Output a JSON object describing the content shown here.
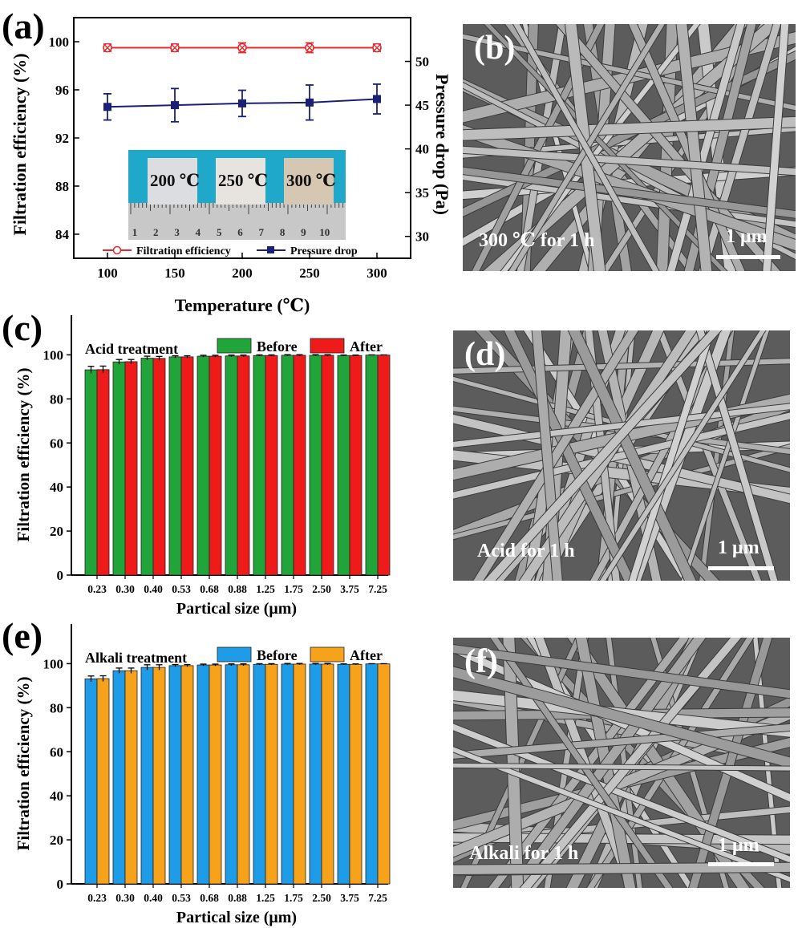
{
  "panel_labels": {
    "a": "(a)",
    "c": "(c)",
    "e": "(e)"
  },
  "chart_data": [
    {
      "id": "a",
      "type": "line",
      "xlabel": "Temperature (℃)",
      "ylabel": "Filtration efficiency (%)",
      "y2label": "Pressure drop (Pa)",
      "x": [
        100,
        150,
        200,
        250,
        300
      ],
      "xticks": [
        "100",
        "150",
        "200",
        "250",
        "300"
      ],
      "ylim": [
        82,
        102
      ],
      "yticks": [
        "84",
        "88",
        "92",
        "96",
        "100"
      ],
      "y2lim": [
        27.5,
        55
      ],
      "y2ticks": [
        "30",
        "35",
        "40",
        "45",
        "50"
      ],
      "series": [
        {
          "name": "Filtration efficiency",
          "axis": "left",
          "color": "#e8282e",
          "marker": "circle-x",
          "values": [
            99.5,
            99.5,
            99.5,
            99.5,
            99.5
          ],
          "errors": [
            0.3,
            0.3,
            0.4,
            0.4,
            0.3
          ]
        },
        {
          "name": "Pressure drop",
          "axis": "right",
          "color": "#1a1f78",
          "marker": "square",
          "values": [
            44.8,
            45.0,
            45.2,
            45.3,
            45.7
          ],
          "errors": [
            1.5,
            1.9,
            1.5,
            2.0,
            1.7
          ]
        }
      ],
      "inset": {
        "labels": [
          "200 ℃",
          "250 ℃",
          "300 ℃"
        ],
        "ruler_numbers": [
          "1",
          "2",
          "3",
          "4",
          "5",
          "6",
          "7",
          "8",
          "9",
          "10"
        ]
      }
    },
    {
      "id": "c",
      "type": "bar",
      "annotation": "Acid treatment",
      "xlabel": "Partical size (μm)",
      "ylabel": "Filtration efficiency (%)",
      "categories": [
        "0.23",
        "0.30",
        "0.40",
        "0.53",
        "0.68",
        "0.88",
        "1.25",
        "1.75",
        "2.50",
        "3.75",
        "7.25"
      ],
      "ylim": [
        0,
        118
      ],
      "yticks": [
        "0",
        "20",
        "40",
        "60",
        "80",
        "100"
      ],
      "series": [
        {
          "name": "Before",
          "color": "#21a53a",
          "values": [
            93.2,
            96.8,
            98.5,
            99.1,
            99.4,
            99.5,
            99.7,
            99.8,
            99.8,
            99.7,
            99.9
          ],
          "errors": [
            1.6,
            1.1,
            0.9,
            0.5,
            0.4,
            0.4,
            0.3,
            0.3,
            0.3,
            0.2,
            0.1
          ]
        },
        {
          "name": "After",
          "color": "#ef1b1b",
          "values": [
            93.3,
            96.9,
            98.4,
            99.1,
            99.4,
            99.5,
            99.7,
            99.8,
            99.8,
            99.7,
            99.9
          ],
          "errors": [
            1.6,
            1.0,
            0.9,
            0.5,
            0.4,
            0.4,
            0.3,
            0.3,
            0.3,
            0.2,
            0.1
          ]
        }
      ]
    },
    {
      "id": "e",
      "type": "bar",
      "annotation": "Alkali treatment",
      "xlabel": "Partical size (μm)",
      "ylabel": "Filtration efficiency (%)",
      "categories": [
        "0.23",
        "0.30",
        "0.40",
        "0.53",
        "0.68",
        "0.88",
        "1.25",
        "1.75",
        "2.50",
        "3.75",
        "7.25"
      ],
      "ylim": [
        0,
        118
      ],
      "yticks": [
        "0",
        "20",
        "40",
        "60",
        "80",
        "100"
      ],
      "series": [
        {
          "name": "Before",
          "color": "#1f9ce8",
          "values": [
            93.1,
            96.8,
            98.3,
            99.1,
            99.4,
            99.5,
            99.7,
            99.8,
            99.8,
            99.7,
            99.9
          ],
          "errors": [
            1.3,
            1.2,
            1.2,
            0.5,
            0.4,
            0.4,
            0.3,
            0.3,
            0.3,
            0.2,
            0.1
          ]
        },
        {
          "name": "After",
          "color": "#f7a21b",
          "values": [
            93.2,
            96.8,
            98.3,
            99.1,
            99.4,
            99.5,
            99.7,
            99.8,
            99.8,
            99.7,
            99.9
          ],
          "errors": [
            1.3,
            1.2,
            1.2,
            0.5,
            0.4,
            0.4,
            0.3,
            0.3,
            0.3,
            0.2,
            0.1
          ]
        }
      ]
    }
  ],
  "sem_images": [
    {
      "id": "b",
      "label": "(b)",
      "caption": "300 ℃ for 1 h",
      "scale": "1 μm"
    },
    {
      "id": "d",
      "label": "(d)",
      "caption": "Acid for 1 h",
      "scale": "1 μm"
    },
    {
      "id": "f",
      "label": "(f)",
      "caption": "Alkali for 1 h",
      "scale": "1 μm"
    }
  ]
}
